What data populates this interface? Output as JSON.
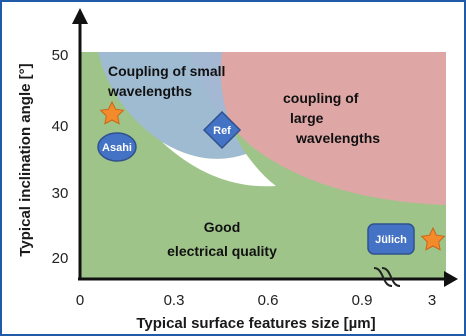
{
  "axes": {
    "y_label": "Typical inclination angle [°]",
    "x_label": "Typical surface features size [µm]",
    "y_ticks": [
      "50",
      "40",
      "30",
      "20"
    ],
    "x_ticks": [
      "0",
      "0.3",
      "0.6",
      "0.9",
      "3"
    ]
  },
  "regions": {
    "good": {
      "lines": [
        "Good",
        "electrical quality"
      ],
      "color": "#9fc48a"
    },
    "small": {
      "lines": [
        "Coupling of small",
        "wavelengths"
      ],
      "color": "#9dbad8"
    },
    "large": {
      "lines": [
        "coupling of",
        "large",
        "wavelengths"
      ],
      "color": "#e6a3a9"
    }
  },
  "markers": {
    "asahi": {
      "label": "Asahi",
      "color": "#4472c4"
    },
    "ref": {
      "label": "Ref",
      "color": "#4472c4"
    },
    "julich": {
      "label": "Jülich",
      "color": "#4472c4"
    },
    "star_color": "#f38a2c"
  }
}
